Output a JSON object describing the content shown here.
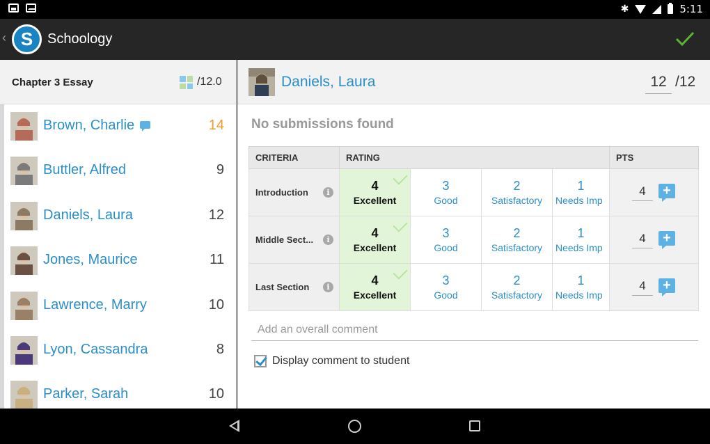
{
  "app": {
    "title": "Schoology",
    "logo_letter": "S",
    "accent": "#2a8fc9"
  },
  "status_bar": {
    "time": "5:11"
  },
  "assignment": {
    "title": "Chapter 3 Essay",
    "max_points": "/12.0"
  },
  "students": [
    {
      "name": "Brown, Charlie",
      "score": "14",
      "has_comment": true,
      "avatar_color": "#b56a5a"
    },
    {
      "name": "Buttler, Alfred",
      "score": "9",
      "has_comment": false,
      "avatar_color": "#7b7b7b"
    },
    {
      "name": "Daniels, Laura",
      "score": "12",
      "has_comment": false,
      "avatar_color": "#8c7a64"
    },
    {
      "name": "Jones, Maurice",
      "score": "11",
      "has_comment": false,
      "avatar_color": "#6b5044"
    },
    {
      "name": "Lawrence, Marry",
      "score": "10",
      "has_comment": false,
      "avatar_color": "#9a8066"
    },
    {
      "name": "Lyon, Cassandra",
      "score": "8",
      "has_comment": false,
      "avatar_color": "#4a3a7c"
    },
    {
      "name": "Parker, Sarah",
      "score": "10",
      "has_comment": false,
      "avatar_color": "#c8b080"
    }
  ],
  "selected": {
    "name": "Daniels, Laura",
    "score": "12",
    "max": "/12"
  },
  "no_submissions": "No submissions found",
  "rubric": {
    "headers": {
      "criteria": "CRITERIA",
      "rating": "RATING",
      "pts": "PTS"
    },
    "rows": [
      {
        "criterion": "Introduction",
        "points": "4",
        "levels": [
          {
            "v": "4",
            "l": "Excellent",
            "on": true
          },
          {
            "v": "3",
            "l": "Good"
          },
          {
            "v": "2",
            "l": "Satisfactory"
          },
          {
            "v": "1",
            "l": "Needs Imp"
          }
        ]
      },
      {
        "criterion": "Middle Sect...",
        "points": "4",
        "levels": [
          {
            "v": "4",
            "l": "Excellent",
            "on": true
          },
          {
            "v": "3",
            "l": "Good"
          },
          {
            "v": "2",
            "l": "Satisfactory"
          },
          {
            "v": "1",
            "l": "Needs Imp"
          }
        ]
      },
      {
        "criterion": "Last Section",
        "points": "4",
        "levels": [
          {
            "v": "4",
            "l": "Excellent",
            "on": true
          },
          {
            "v": "3",
            "l": "Good"
          },
          {
            "v": "2",
            "l": "Satisfactory"
          },
          {
            "v": "1",
            "l": "Needs Imp"
          }
        ]
      }
    ]
  },
  "comment": {
    "placeholder": "Add an overall comment",
    "value": ""
  },
  "display_to_student": {
    "label": "Display comment to student",
    "checked": true
  }
}
